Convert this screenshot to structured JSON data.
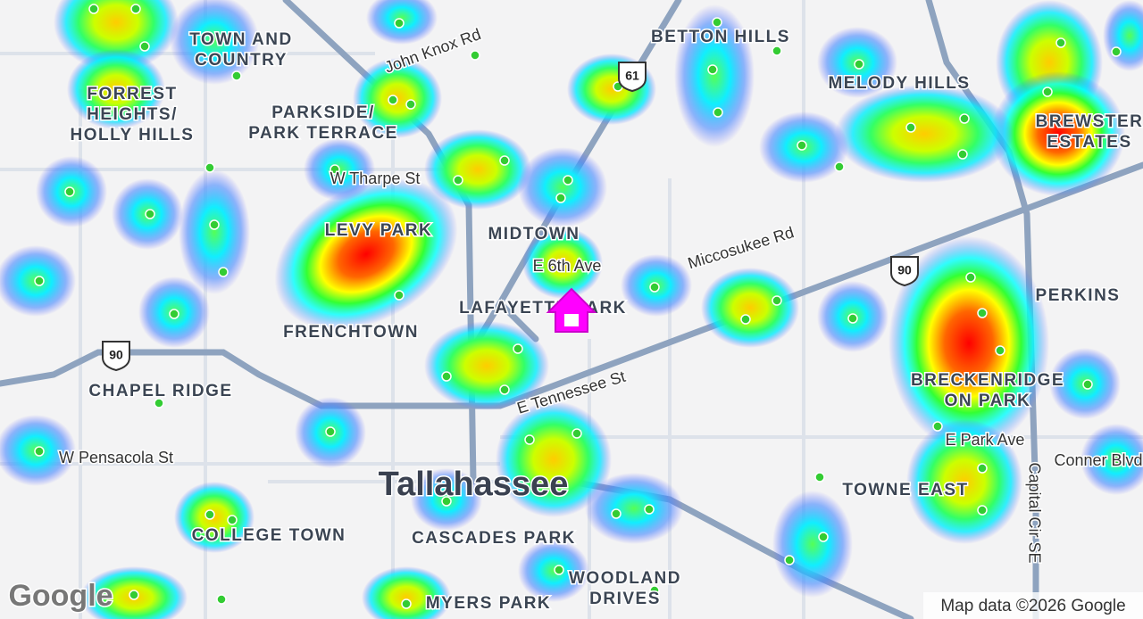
{
  "neighborhoods": [
    [
      "TOWN AND",
      "COUNTRY"
    ],
    [
      "FORREST",
      "HEIGHTS/",
      "HOLLY HILLS"
    ],
    [
      "PARKSIDE/",
      "PARK TERRACE"
    ],
    [
      "BETTON HILLS"
    ],
    [
      "MELODY HILLS"
    ],
    [
      "BREWSTER",
      "ESTATES"
    ],
    [
      "MIDTOWN"
    ],
    [
      "LEVY PARK"
    ],
    [
      "LAFAYETTE PARK"
    ],
    [
      "FRENCHTOWN"
    ],
    [
      "CHAPEL RIDGE"
    ],
    [
      "PERKINS"
    ],
    [
      "BRECKENRIDGE",
      "ON PARK"
    ],
    [
      "TOWNE EAST"
    ],
    [
      "COLLEGE TOWN"
    ],
    [
      "CASCADES PARK"
    ],
    [
      "WOODLAND",
      "DRIVES"
    ],
    [
      "MYERS PARK"
    ]
  ],
  "city": "Tallahassee",
  "streets": [
    "John Knox Rd",
    "W Tharpe St",
    "E 6th Ave",
    "Miccosukee Rd",
    "E Tennessee St",
    "W Pensacola St",
    "E Park Ave",
    "Capital Cir SE",
    "Conner Blvd"
  ],
  "route_shields": [
    "61",
    "90",
    "90"
  ],
  "logo": "Google",
  "attribution": "Map data ©2026 Google"
}
